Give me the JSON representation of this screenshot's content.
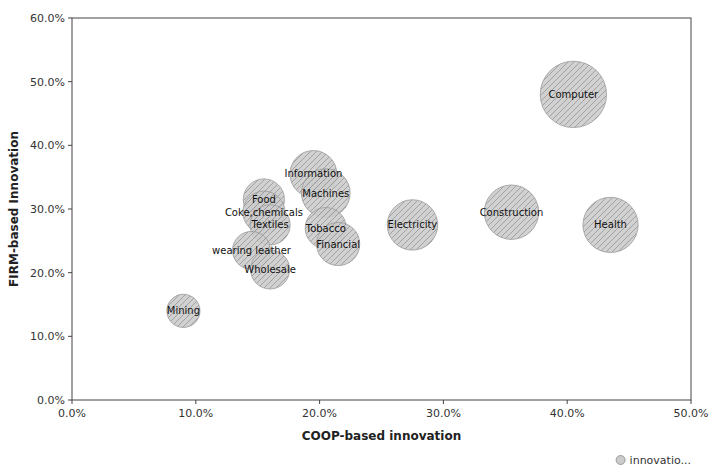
{
  "chart_data": {
    "type": "bubble",
    "x": [
      0.09,
      0.155,
      0.155,
      0.16,
      0.145,
      0.16,
      0.195,
      0.205,
      0.205,
      0.215,
      0.275,
      0.355,
      0.435,
      0.405
    ],
    "labels": [
      "Mining",
      "Food",
      "Coke,chemicals",
      "Textiles",
      "wearing leather",
      "Wholesale",
      "Information",
      "Machines",
      "Tobacco",
      "Financial",
      "Electricity",
      "Construction",
      "Health",
      "Computer"
    ],
    "series": [
      {
        "name": "innovatio...",
        "color": "#cccccc",
        "values": [
          0.14,
          0.315,
          0.295,
          0.275,
          0.235,
          0.205,
          0.355,
          0.325,
          0.27,
          0.245,
          0.275,
          0.295,
          0.275,
          0.48
        ],
        "sizes": [
          0.13,
          0.2,
          0.21,
          0.19,
          0.17,
          0.18,
          0.26,
          0.28,
          0.2,
          0.22,
          0.3,
          0.35,
          0.36,
          0.52
        ]
      }
    ],
    "x_label": "COOP-based innovation",
    "y_label": "FIRM-based Innovation",
    "xlim": [
      0.0,
      0.5
    ],
    "ylim": [
      0.0,
      0.6
    ],
    "xticks": [
      {
        "value": 0.0,
        "label": "0.0%"
      },
      {
        "value": 0.1,
        "label": "10.0%"
      },
      {
        "value": 0.2,
        "label": "20.0%"
      },
      {
        "value": 0.3,
        "label": "30.0%"
      },
      {
        "value": 0.4,
        "label": "40.0%"
      },
      {
        "value": 0.5,
        "label": "50.0%"
      }
    ],
    "yticks": [
      {
        "value": 0.0,
        "label": "0.0%"
      },
      {
        "value": 0.1,
        "label": "10.0%"
      },
      {
        "value": 0.2,
        "label": "20.0%"
      },
      {
        "value": 0.3,
        "label": "30.0%"
      },
      {
        "value": 0.4,
        "label": "40.0%"
      },
      {
        "value": 0.5,
        "label": "50.0%"
      },
      {
        "value": 0.6,
        "label": "60.0%"
      }
    ],
    "grid": false,
    "legend": "lower right"
  }
}
